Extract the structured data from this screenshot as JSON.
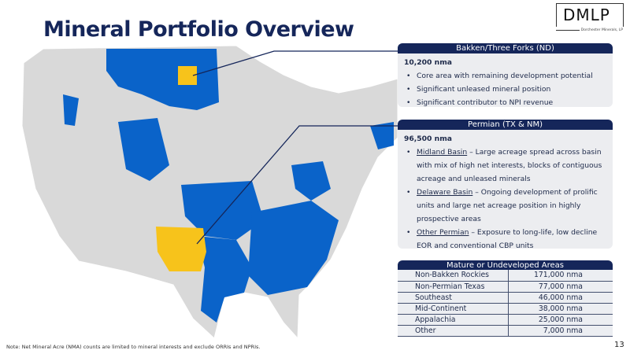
{
  "title": "Mineral Portfolio Overview",
  "logo": {
    "text": "DMLP",
    "subtitle": "Dorchester Minerals, LP"
  },
  "bakken": {
    "header": "Bakken/Three Forks (ND)",
    "nma": "10,200 nma",
    "bullets": [
      "Core area with remaining development potential",
      "Significant unleased mineral position",
      "Significant contributor to NPI revenue"
    ]
  },
  "permian": {
    "header": "Permian (TX & NM)",
    "nma": "96,500 nma",
    "bullets": [
      {
        "term": "Midland Basin",
        "text": " – Large acreage spread across basin with mix of high net interests, blocks of contiguous acreage and unleased minerals"
      },
      {
        "term": "Delaware Basin",
        "text": " – Ongoing development of prolific units and large net acreage position in highly prospective areas"
      },
      {
        "term": "Other Permian",
        "text": " – Exposure to long-life, low decline EOR and conventional CBP units"
      }
    ]
  },
  "table": {
    "header": "Mature or Undeveloped Areas",
    "rows": [
      [
        "Non-Bakken Rockies",
        "171,000 nma"
      ],
      [
        "Non-Permian Texas",
        "77,000 nma"
      ],
      [
        "Southeast",
        "46,000 nma"
      ],
      [
        "Mid-Continent",
        "38,000 nma"
      ],
      [
        "Appalachia",
        "25,000 nma"
      ],
      [
        "Other",
        "7,000 nma"
      ]
    ]
  },
  "footnote": "Note: Net Mineral Acre (NMA) counts are limited to mineral interests and exclude ORRIs and NPRIs.",
  "page_number": "13",
  "colors": {
    "navy": "#15265a",
    "holdings": "#0a63c9",
    "highlight": "#f7c31b",
    "land": "#d9d9d9"
  }
}
